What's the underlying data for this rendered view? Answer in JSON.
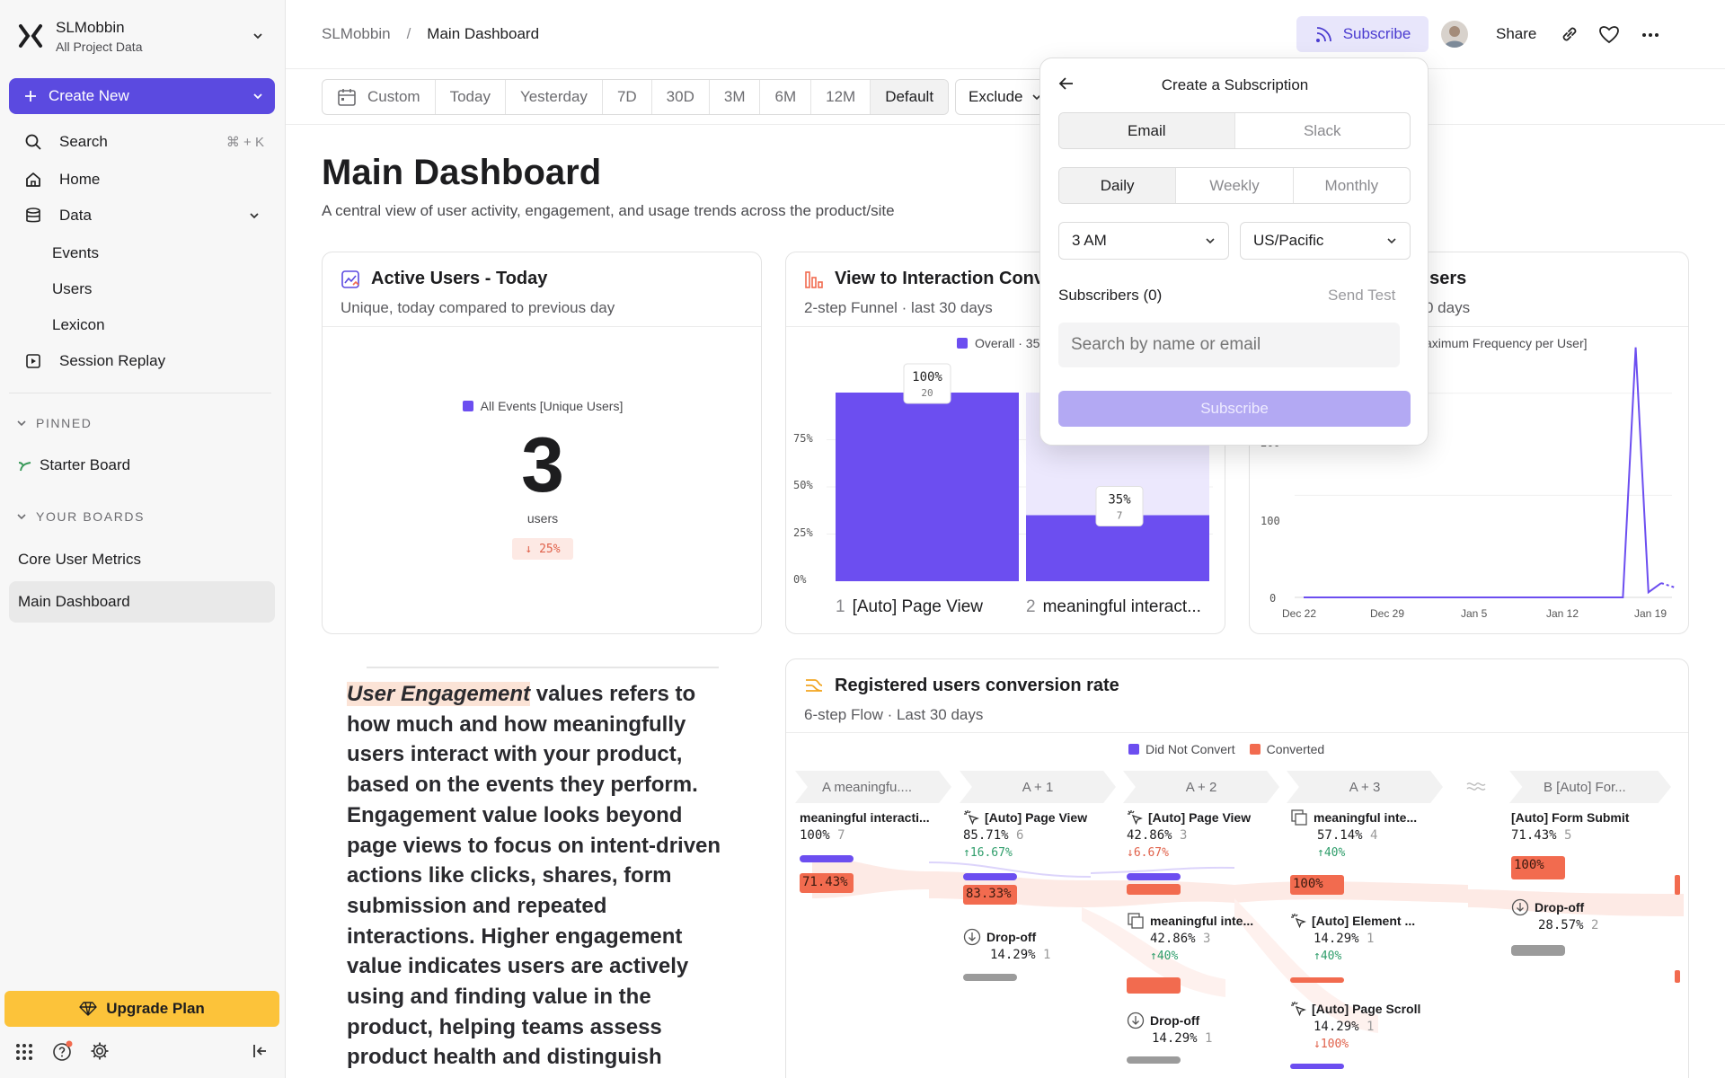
{
  "sidebar": {
    "project_name": "SLMobbin",
    "project_sub": "All Project Data",
    "create_label": "Create New",
    "search_label": "Search",
    "search_shortcut": "⌘ + K",
    "home_label": "Home",
    "data_label": "Data",
    "data_children": [
      "Events",
      "Users",
      "Lexicon"
    ],
    "session_replay_label": "Session Replay",
    "pinned_header": "PINNED",
    "pinned_items": [
      "Starter Board"
    ],
    "boards_header": "YOUR BOARDS",
    "boards": [
      "Core User Metrics",
      "Main Dashboard"
    ],
    "active_board": "Main Dashboard",
    "upgrade_label": "Upgrade Plan",
    "colors": {
      "accent": "#5b4ae0",
      "upgrade": "#fcc33a"
    }
  },
  "header": {
    "breadcrumb_root": "SLMobbin",
    "breadcrumb_sep": "/",
    "breadcrumb_current": "Main Dashboard",
    "subscribe_label": "Subscribe",
    "share_label": "Share"
  },
  "datebar": {
    "custom_label": "Custom",
    "ranges": [
      "Today",
      "Yesterday",
      "7D",
      "30D",
      "3M",
      "6M",
      "12M",
      "Default"
    ],
    "selected": "Default",
    "exclude_label": "Exclude"
  },
  "page": {
    "title": "Main Dashboard",
    "description": "A central view of user activity, engagement, and usage trends across the product/site"
  },
  "active_users_card": {
    "title": "Active Users - Today",
    "subtitle": "Unique, today compared to previous day",
    "legend": "All Events [Unique Users]",
    "value": "3",
    "unit": "users",
    "change": "↓ 25%"
  },
  "funnel_card": {
    "title": "View to Interaction Conv",
    "subtitle": "2-step Funnel · last 30 days",
    "legend": "Overall · 35",
    "y_ticks": [
      "75%",
      "50%",
      "25%",
      "0%"
    ],
    "steps": [
      {
        "num": "1",
        "name": "[Auto] Page View"
      },
      {
        "num": "2",
        "name": "meaningful interact..."
      }
    ],
    "chart_data": {
      "type": "bar",
      "categories": [
        "[Auto] Page View",
        "meaningful interact..."
      ],
      "values": [
        100,
        35
      ],
      "counts": [
        "20",
        "7"
      ],
      "labels": [
        "100%",
        "35%"
      ],
      "ylim": [
        0,
        100
      ]
    }
  },
  "frequency_card": {
    "title_partial": "Jsers",
    "subtitle_partial": "0 days",
    "legend_partial": "aximum Frequency per User]",
    "y_ticks": [
      "200",
      "100",
      "0"
    ],
    "x_ticks": [
      "Dec 22",
      "Dec 29",
      "Jan 5",
      "Jan 12",
      "Jan 19"
    ],
    "chart_data": {
      "type": "line",
      "x": [
        "Dec 22",
        "Dec 29",
        "Jan 5",
        "Jan 12",
        "Jan 15",
        "Jan 16",
        "Jan 17",
        "Jan 18",
        "Jan 19",
        "Jan 20"
      ],
      "y": [
        0,
        0,
        0,
        0,
        0,
        0,
        245,
        5,
        14,
        10
      ],
      "ylim": [
        0,
        250
      ]
    }
  },
  "engagement_text": {
    "highlight": "User Engagement",
    "body": " values refers to how much and how meaningfully users interact with your product, based on the events they perform. Engagement value looks beyond page views to focus on intent-driven actions like clicks, shares, form submission and repeated interactions. Higher engagement value indicates users are actively using and finding value in the product, helping teams assess product health and distinguish"
  },
  "flow_card": {
    "title": "Registered users conversion rate",
    "subtitle": "6-step Flow · Last 30 days",
    "legend": [
      "Did Not Convert",
      "Converted"
    ],
    "legend_colors": [
      "#6c4ef0",
      "#f26b4f"
    ],
    "steps": [
      "A  meaningfu....",
      "A + 1",
      "A + 2",
      "A + 3",
      "B  [Auto] For..."
    ],
    "nodes": {
      "n1": {
        "label": "meaningful interacti...",
        "pct": "100%",
        "count": "7",
        "bar": "71.43%"
      },
      "n2": {
        "label": "[Auto] Page View",
        "pct": "85.71%",
        "count": "6",
        "delta": "↑16.67%",
        "bar": "83.33%"
      },
      "n3": {
        "label": "Drop-off",
        "pct": "14.29%",
        "count": "1"
      },
      "n4": {
        "label": "[Auto] Page View",
        "pct": "42.86%",
        "count": "3",
        "delta": "↓6.67%"
      },
      "n5": {
        "label": "meaningful inte...",
        "pct": "42.86%",
        "count": "3",
        "delta": "↑40%"
      },
      "n6": {
        "label": "Drop-off",
        "pct": "14.29%",
        "count": "1"
      },
      "n7": {
        "label": "meaningful inte...",
        "pct": "57.14%",
        "count": "4",
        "delta": "↑40%",
        "bar": "100%"
      },
      "n8": {
        "label": "[Auto] Element ...",
        "pct": "14.29%",
        "count": "1",
        "delta": "↑40%"
      },
      "n9": {
        "label": "[Auto] Page Scroll",
        "pct": "14.29%",
        "count": "1",
        "delta": "↓100%"
      },
      "n10": {
        "label": "[Auto] Form Submit",
        "pct": "71.43%",
        "count": "5",
        "bar": "100%"
      },
      "n11": {
        "label": "Drop-off",
        "pct": "28.57%",
        "count": "2"
      }
    }
  },
  "subscription": {
    "title": "Create a Subscription",
    "channels": [
      "Email",
      "Slack"
    ],
    "channel_selected": "Email",
    "frequencies": [
      "Daily",
      "Weekly",
      "Monthly"
    ],
    "frequency_selected": "Daily",
    "time_value": "3 AM",
    "timezone_value": "US/Pacific",
    "subscribers_label": "Subscribers (0)",
    "send_test_label": "Send Test",
    "search_placeholder": "Search by name or email",
    "submit_label": "Subscribe"
  }
}
